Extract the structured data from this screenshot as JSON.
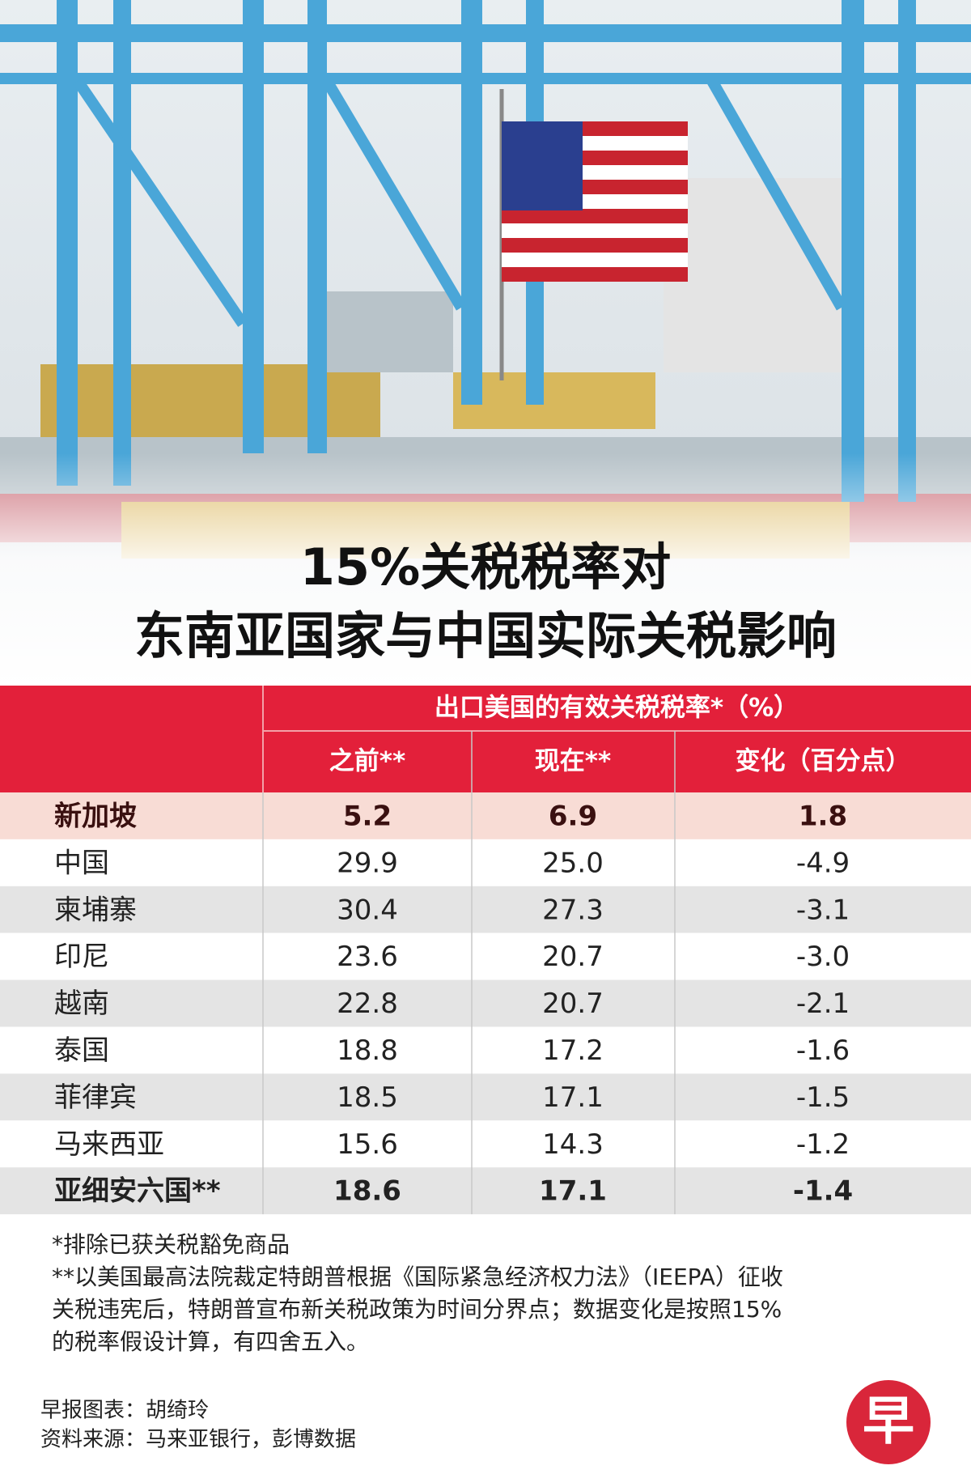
{
  "header": {
    "title_lines": [
      "15%关税税率对",
      "东南亚国家与中国实际关税影响"
    ]
  },
  "table": {
    "group_header": "出口美国的有效关税税率*（%）",
    "columns": [
      "之前**",
      "现在**",
      "变化（百分点）"
    ],
    "rows": [
      [
        "新加坡",
        "5.2",
        "6.9",
        "1.8"
      ],
      [
        "中国",
        "29.9",
        "25.0",
        "-4.9"
      ],
      [
        "柬埔寨",
        "30.4",
        "27.3",
        "-3.1"
      ],
      [
        "印尼",
        "23.6",
        "20.7",
        "-3.0"
      ],
      [
        "越南",
        "22.8",
        "20.7",
        "-2.1"
      ],
      [
        "泰国",
        "18.8",
        "17.2",
        "-1.6"
      ],
      [
        "菲律宾",
        "18.5",
        "17.1",
        "-1.5"
      ],
      [
        "马来西亚",
        "15.6",
        "14.3",
        "-1.2"
      ],
      [
        "亚细安六国**",
        "18.6",
        "17.1",
        "-1.4"
      ]
    ]
  },
  "footnotes": [
    "*排除已获关税豁免商品",
    "**以美国最高法院裁定特朗普根据《国际紧急经济权力法》（IEEPA）征收",
    "关税违宪后，特朗普宣布新关税政策为时间分界点；数据变化是按照15%",
    "的税率假设计算，有四舍五入。"
  ],
  "credits": [
    "早报图表：胡绮玲",
    "资料来源：马来亚银行，彭博数据"
  ],
  "logo": "早"
}
